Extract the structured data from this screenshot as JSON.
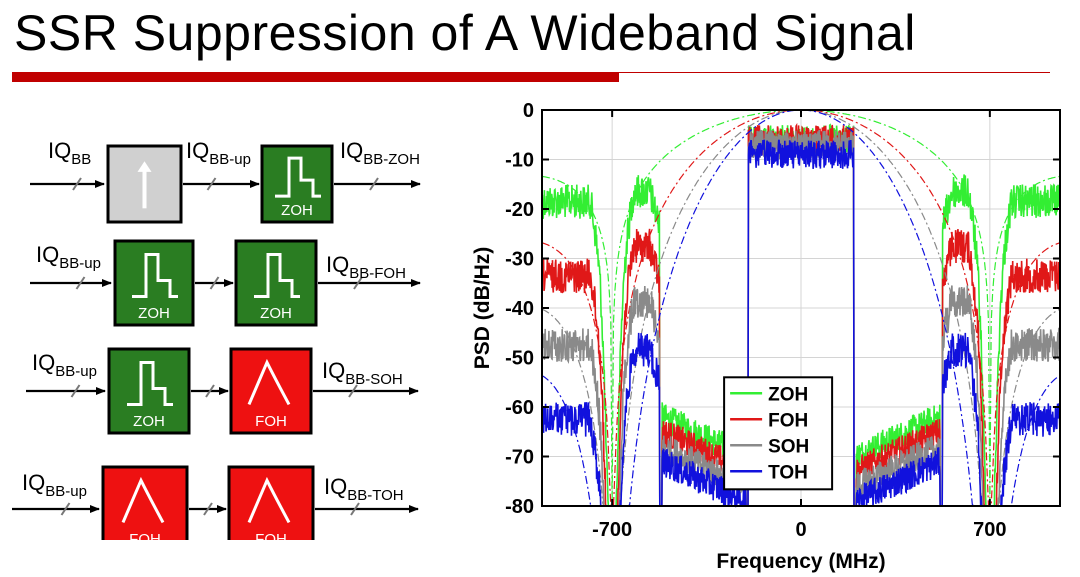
{
  "title": "SSR Suppression of A Wideband Signal",
  "colors": {
    "accent": "#c00000",
    "zoh_block": "#2a7d22",
    "foh_block": "#ee1111",
    "upsampler_block": "#d0d0d0",
    "ZOH": "#33ee33",
    "FOH": "#e01818",
    "SOH": "#8a8a8a",
    "TOH": "#1111dd"
  },
  "diagram": {
    "rows": [
      {
        "input": {
          "main": "IQ",
          "sub": "BB"
        },
        "blocks": [
          {
            "kind": "upsampler",
            "icon": "up-arrow-icon",
            "label": ""
          },
          {
            "kind": "zoh",
            "icon": "step-response-icon",
            "label": "ZOH"
          }
        ],
        "mid_label": {
          "main": "IQ",
          "sub": "BB-up"
        },
        "output": {
          "main": "IQ",
          "sub": "BB-ZOH"
        }
      },
      {
        "input": {
          "main": "IQ",
          "sub": "BB-up"
        },
        "blocks": [
          {
            "kind": "zoh",
            "icon": "step-response-icon",
            "label": "ZOH"
          },
          {
            "kind": "zoh",
            "icon": "step-response-icon",
            "label": "ZOH"
          }
        ],
        "output": {
          "main": "IQ",
          "sub": "BB-FOH"
        }
      },
      {
        "input": {
          "main": "IQ",
          "sub": "BB-up"
        },
        "blocks": [
          {
            "kind": "zoh",
            "icon": "step-response-icon",
            "label": "ZOH"
          },
          {
            "kind": "foh",
            "icon": "triangle-response-icon",
            "label": "FOH"
          }
        ],
        "output": {
          "main": "IQ",
          "sub": "BB-SOH"
        }
      },
      {
        "input": {
          "main": "IQ",
          "sub": "BB-up"
        },
        "blocks": [
          {
            "kind": "foh",
            "icon": "triangle-response-icon",
            "label": "FOH"
          },
          {
            "kind": "foh",
            "icon": "triangle-response-icon",
            "label": "FOH"
          }
        ],
        "output": {
          "main": "IQ",
          "sub": "BB-TOH"
        }
      }
    ]
  },
  "chart_data": {
    "type": "line",
    "title": "",
    "xlabel": "Frequency (MHz)",
    "ylabel": "PSD (dB/Hz)",
    "xlim": [
      -960,
      960
    ],
    "ylim": [
      -80,
      0
    ],
    "xticks": [
      -700,
      0,
      700
    ],
    "xtick_labels": [
      "-700",
      "0",
      "700"
    ],
    "yticks": [
      0,
      -10,
      -20,
      -30,
      -40,
      -50,
      -60,
      -70,
      -80
    ],
    "ytick_labels": [
      "0",
      "-10",
      "-20",
      "-30",
      "-40",
      "-50",
      "-60",
      "-70",
      "-80"
    ],
    "grid": true,
    "legend": {
      "placement": "bottom-center"
    },
    "notes": "Dashed-dot sinc^n envelopes per series; in-band signal occupies about -200..200 MHz, first image band about ±(520..960) MHz with nulls near ±700 MHz.",
    "series": [
      {
        "name": "ZOH",
        "envelope_x": [
          -960,
          -800,
          -700,
          -500,
          -300,
          -100,
          0,
          100,
          300,
          500,
          700,
          800,
          960
        ],
        "envelope_y": [
          -14,
          -15,
          -20,
          -10,
          -4,
          -1,
          0,
          -1,
          -4,
          -10,
          -20,
          -15,
          -14
        ],
        "image_peak_x": [
          -790,
          -600,
          600,
          790
        ],
        "image_peak_y": [
          -15,
          -13,
          -13,
          -15
        ],
        "adjacent_floor_db": -62,
        "inband_db": -1
      },
      {
        "name": "FOH",
        "envelope_y_at_image": -22,
        "image_peak_x": [
          -790,
          -600,
          600,
          790
        ],
        "image_peak_y": [
          -30,
          -24,
          -24,
          -30
        ],
        "adjacent_floor_db": -65,
        "inband_db": -1
      },
      {
        "name": "SOH",
        "envelope_y_at_image": -33,
        "image_peak_x": [
          -790,
          -600,
          600,
          790
        ],
        "image_peak_y": [
          -44,
          -35,
          -35,
          -44
        ],
        "adjacent_floor_db": -68,
        "inband_db": -2
      },
      {
        "name": "TOH",
        "envelope_y_at_image": -43,
        "image_peak_x": [
          -790,
          -600,
          600,
          790
        ],
        "image_peak_y": [
          -59,
          -45,
          -45,
          -59
        ],
        "adjacent_floor_db": -71,
        "inband_db": -4
      }
    ]
  }
}
